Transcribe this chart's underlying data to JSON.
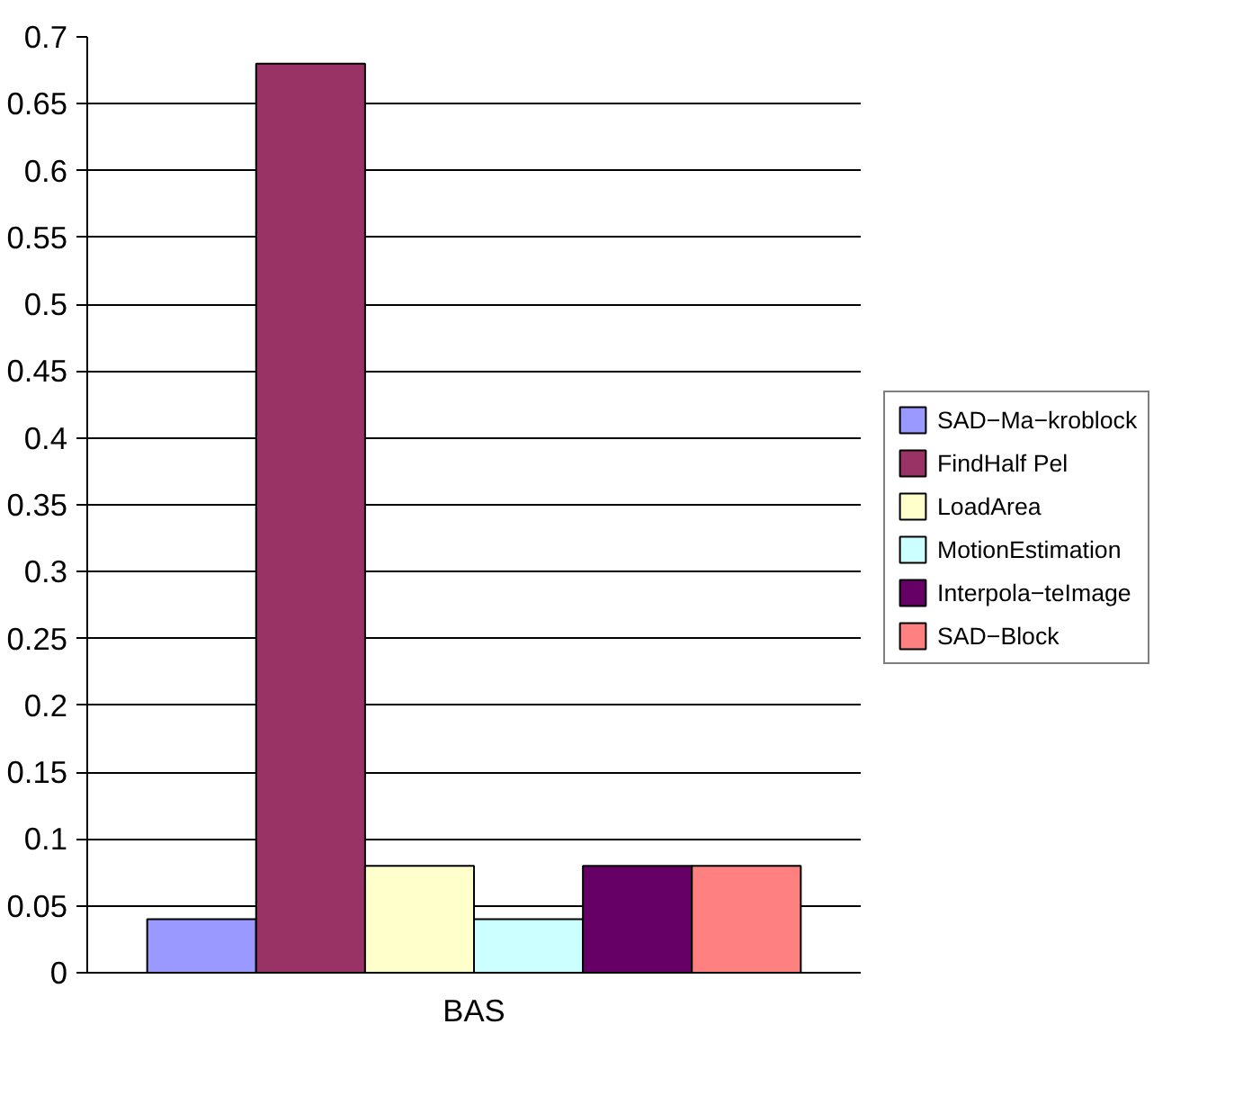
{
  "chart_data": {
    "type": "bar",
    "categories": [
      "BAS"
    ],
    "series": [
      {
        "name": "SAD−Ma−kroblock",
        "color": "#9999ff",
        "values": [
          0.04
        ]
      },
      {
        "name": "FindHalf Pel",
        "color": "#993366",
        "values": [
          0.68
        ]
      },
      {
        "name": "LoadArea",
        "color": "#ffffcc",
        "values": [
          0.08
        ]
      },
      {
        "name": "MotionEstimation",
        "color": "#ccffff",
        "values": [
          0.04
        ]
      },
      {
        "name": "Interpola−teImage",
        "color": "#660066",
        "values": [
          0.08
        ]
      },
      {
        "name": "SAD−Block",
        "color": "#ff8080",
        "values": [
          0.08
        ]
      }
    ],
    "ylim": [
      0,
      0.7
    ],
    "yticks": [
      0,
      0.05,
      0.1,
      0.15,
      0.2,
      0.25,
      0.3,
      0.35,
      0.4,
      0.45,
      0.5,
      0.55,
      0.6,
      0.65,
      0.7
    ],
    "grid": "y",
    "legend": "right"
  }
}
